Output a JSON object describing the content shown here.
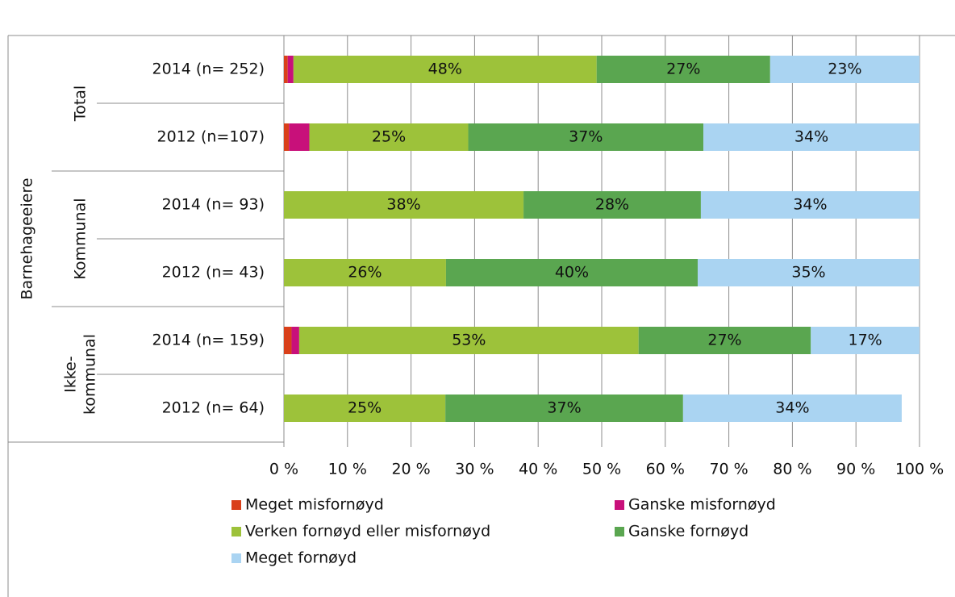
{
  "chart_data": {
    "type": "stacked_bar_horizontal",
    "axis_title": "Barnehageeiere",
    "groups": [
      {
        "label": [
          "Total"
        ],
        "categories": [
          "2014 (n= 252)",
          "2012 (n=107)"
        ]
      },
      {
        "label": [
          "Kommunal"
        ],
        "categories": [
          "2014 (n= 93)",
          "2012 (n= 43)"
        ]
      },
      {
        "label": [
          "Ikke-",
          "kommunal"
        ],
        "categories": [
          "2014 (n= 159)",
          "2012 (n= 64)"
        ]
      }
    ],
    "series": [
      {
        "name": "Meget misfornøyd",
        "color": "#d9401a",
        "values": [
          0.6,
          0.8,
          0,
          0,
          1.2,
          0
        ],
        "value_labels": [
          null,
          null,
          null,
          null,
          null,
          null
        ]
      },
      {
        "name": "Ganske misfornøyd",
        "color": "#c8107a",
        "values": [
          0.9,
          3.2,
          0,
          0,
          1.2,
          0
        ],
        "value_labels": [
          null,
          null,
          null,
          null,
          null,
          null
        ]
      },
      {
        "name": "Verken fornøyd eller misfornøyd",
        "color": "#9dc23a",
        "values": [
          47.7,
          25.0,
          37.7,
          25.5,
          53.4,
          25.4
        ],
        "value_labels": [
          "48%",
          "25%",
          "38%",
          "26%",
          "53%",
          "25%"
        ]
      },
      {
        "name": "Ganske fornøyd",
        "color": "#5aa650",
        "values": [
          27.3,
          37.0,
          27.9,
          39.6,
          27.1,
          37.4
        ],
        "value_labels": [
          "27%",
          "37%",
          "28%",
          "40%",
          "27%",
          "37%"
        ]
      },
      {
        "name": "Meget fornøyd",
        "color": "#aad4f2",
        "values": [
          23.5,
          34.0,
          34.4,
          34.9,
          17.1,
          34.4
        ],
        "value_labels": [
          "23%",
          "34%",
          "34%",
          "35%",
          "17%",
          "34%"
        ]
      }
    ],
    "xlim": [
      0,
      100
    ],
    "xticks": [
      {
        "value": 0,
        "label": "0 %"
      },
      {
        "value": 10,
        "label": "10 %"
      },
      {
        "value": 20,
        "label": "20 %"
      },
      {
        "value": 30,
        "label": "30 %"
      },
      {
        "value": 40,
        "label": "40 %"
      },
      {
        "value": 50,
        "label": "50 %"
      },
      {
        "value": 60,
        "label": "60 %"
      },
      {
        "value": 70,
        "label": "70 %"
      },
      {
        "value": 80,
        "label": "80 %"
      },
      {
        "value": 90,
        "label": "90 %"
      },
      {
        "value": 100,
        "label": "100 %"
      }
    ],
    "grid": true,
    "legend": "bottom"
  }
}
